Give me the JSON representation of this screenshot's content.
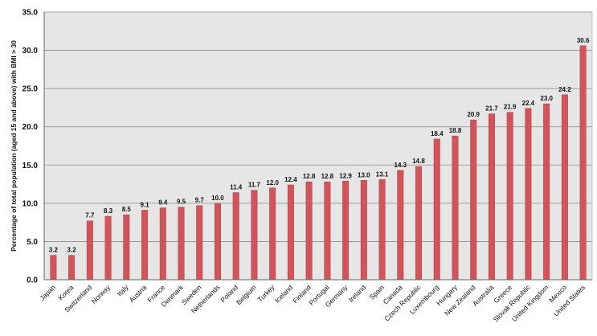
{
  "chart_data": {
    "type": "bar",
    "title": "",
    "xlabel": "",
    "ylabel": "Percentage of total population (aged 15 and above) with BMI > 30",
    "ylim": [
      0,
      35
    ],
    "yticks": [
      "0.0",
      "5.0",
      "10.0",
      "15.0",
      "20.0",
      "25.0",
      "30.0",
      "35.0"
    ],
    "grid": true,
    "legend": "none",
    "categories": [
      "Japan",
      "Korea",
      "Switzerland",
      "Norway",
      "Italy",
      "Austria",
      "France",
      "Denmark",
      "Sweden",
      "Netherlands",
      "Poland",
      "Belgium",
      "Turkey",
      "Iceland",
      "Finland",
      "Portugal",
      "Germany",
      "Ireland",
      "Spain",
      "Canada",
      "Czech Republic",
      "Luxembourg",
      "Hungary",
      "New Zealand",
      "Australia",
      "Greece",
      "Slovak Republic",
      "United Kingdom",
      "Mexico",
      "United States"
    ],
    "values": [
      3.2,
      3.2,
      7.7,
      8.3,
      8.5,
      9.1,
      9.4,
      9.5,
      9.7,
      10.0,
      11.4,
      11.7,
      12.0,
      12.4,
      12.8,
      12.8,
      12.9,
      13.0,
      13.1,
      14.3,
      14.8,
      18.4,
      18.8,
      20.9,
      21.7,
      21.9,
      22.4,
      23.0,
      24.2,
      30.6
    ],
    "value_labels": [
      "3.2",
      "3.2",
      "7.7",
      "8.3",
      "8.5",
      "9.1",
      "9.4",
      "9.5",
      "9.7",
      "10.0",
      "11.4",
      "11.7",
      "12.0",
      "12.4",
      "12.8",
      "12.8",
      "12.9",
      "13.0",
      "13.1",
      "14.3",
      "14.8",
      "18.4",
      "18.8",
      "20.9",
      "21.7",
      "21.9",
      "22.4",
      "23.0",
      "24.2",
      "30.6"
    ],
    "colors": {
      "bar": "#d0555b",
      "bar_edge": "#b3404a",
      "plot_bg": "#e6e6e6",
      "grid": "#8a8a8a",
      "axis": "#666666"
    }
  }
}
